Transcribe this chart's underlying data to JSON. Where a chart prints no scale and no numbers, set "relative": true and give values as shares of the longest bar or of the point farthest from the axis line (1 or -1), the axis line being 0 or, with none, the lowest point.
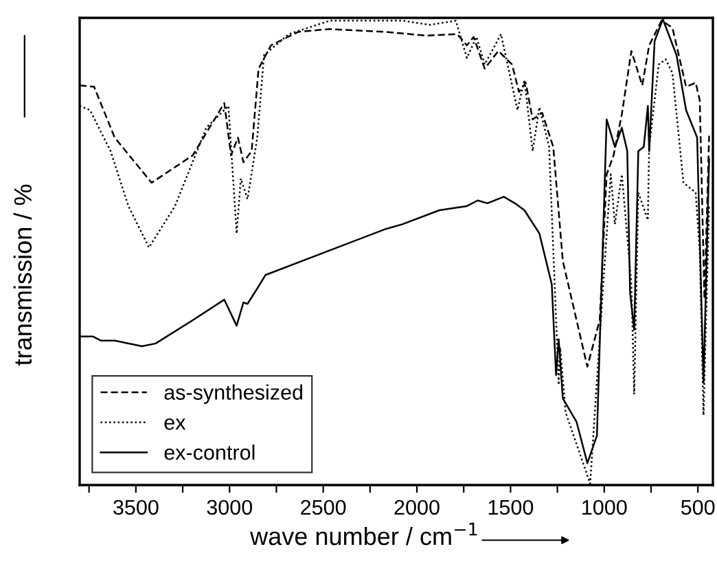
{
  "chart_data": {
    "type": "line",
    "relative": true,
    "xlabel": "wave number / cm$^{−1}$",
    "ylabel": "transmission / %",
    "xlim": [
      3800,
      420
    ],
    "xticks": [
      {
        "value": 3750,
        "label": null
      },
      3500,
      {
        "value": 3250,
        "label": null
      },
      3000,
      {
        "value": 2750,
        "label": null
      },
      2500,
      {
        "value": 2250,
        "label": null
      },
      2000,
      {
        "value": 1750,
        "label": null
      },
      1500,
      {
        "value": 1250,
        "label": null
      },
      1000,
      {
        "value": 750,
        "label": null
      },
      500
    ],
    "tick_labels": "x",
    "grid": false,
    "legend": "bottom left",
    "marker": "none",
    "series": [
      {
        "name": "as-synthesized",
        "color": "#000000",
        "line_style": "dashed",
        "x": [
          3800,
          3723,
          3613,
          3416,
          3196,
          3028,
          2992,
          2955,
          2926,
          2882,
          2845,
          2779,
          2633,
          2465,
          2172,
          1953,
          1784,
          1733,
          1697,
          1638,
          1565,
          1492,
          1455,
          1419,
          1382,
          1331,
          1272,
          1221,
          1090,
          1024,
          987,
          950,
          906,
          855,
          797,
          760,
          694,
          636,
          563,
          512,
          490,
          465,
          440
        ],
        "values": [
          0.858,
          0.855,
          0.746,
          0.649,
          0.708,
          0.82,
          0.708,
          0.746,
          0.693,
          0.717,
          0.894,
          0.944,
          0.973,
          0.979,
          0.973,
          0.965,
          0.968,
          0.944,
          0.962,
          0.894,
          0.932,
          0.903,
          0.844,
          0.864,
          0.785,
          0.799,
          0.726,
          0.481,
          0.254,
          0.354,
          0.667,
          0.708,
          0.796,
          0.932,
          0.858,
          0.944,
          0.997,
          0.982,
          0.855,
          0.864,
          0.826,
          0.4,
          0.75
        ]
      },
      {
        "name": "ex",
        "color": "#000000",
        "line_style": "dotted",
        "x": [
          3800,
          3745,
          3635,
          3540,
          3430,
          3291,
          3124,
          3006,
          2962,
          2940,
          2904,
          2852,
          2816,
          2684,
          2465,
          2077,
          1931,
          1792,
          1733,
          1682,
          1638,
          1551,
          1463,
          1426,
          1382,
          1346,
          1294,
          1243,
          1235,
          1206,
          1075,
          1002,
          965,
          943,
          906,
          855,
          840,
          818,
          767,
          760,
          709,
          672,
          636,
          577,
          512,
          490,
          470,
          440
        ],
        "values": [
          0.814,
          0.805,
          0.717,
          0.599,
          0.51,
          0.599,
          0.767,
          0.814,
          0.54,
          0.658,
          0.614,
          0.746,
          0.923,
          0.968,
          0.997,
          0.997,
          0.988,
          0.997,
          0.917,
          0.962,
          0.903,
          0.968,
          0.805,
          0.87,
          0.717,
          0.811,
          0.726,
          0.215,
          0.295,
          0.156,
          0.003,
          0.451,
          0.667,
          0.56,
          0.667,
          0.431,
          0.195,
          0.628,
          0.569,
          0.726,
          0.903,
          0.914,
          0.885,
          0.649,
          0.628,
          0.501,
          0.15,
          0.6
        ]
      },
      {
        "name": "ex-control",
        "color": "#000000",
        "line_style": "solid",
        "x": [
          3800,
          3730,
          3686,
          3613,
          3467,
          3394,
          3196,
          3028,
          2962,
          2926,
          2904,
          2852,
          2808,
          2172,
          2077,
          1880,
          1733,
          1675,
          1624,
          1536,
          1477,
          1426,
          1346,
          1280,
          1257,
          1243,
          1221,
          1148,
          1090,
          1039,
          987,
          943,
          906,
          877,
          862,
          840,
          818,
          789,
          767,
          760,
          731,
          687,
          614,
          563,
          504,
          470,
          440
        ],
        "values": [
          0.319,
          0.319,
          0.31,
          0.31,
          0.298,
          0.304,
          0.354,
          0.398,
          0.342,
          0.392,
          0.389,
          0.422,
          0.451,
          0.549,
          0.56,
          0.59,
          0.599,
          0.611,
          0.605,
          0.619,
          0.605,
          0.59,
          0.54,
          0.431,
          0.236,
          0.313,
          0.186,
          0.136,
          0.047,
          0.106,
          0.785,
          0.726,
          0.767,
          0.717,
          0.413,
          0.333,
          0.717,
          0.726,
          0.814,
          0.717,
          0.953,
          1.0,
          0.923,
          0.805,
          0.746,
          0.22,
          0.7
        ]
      }
    ]
  }
}
